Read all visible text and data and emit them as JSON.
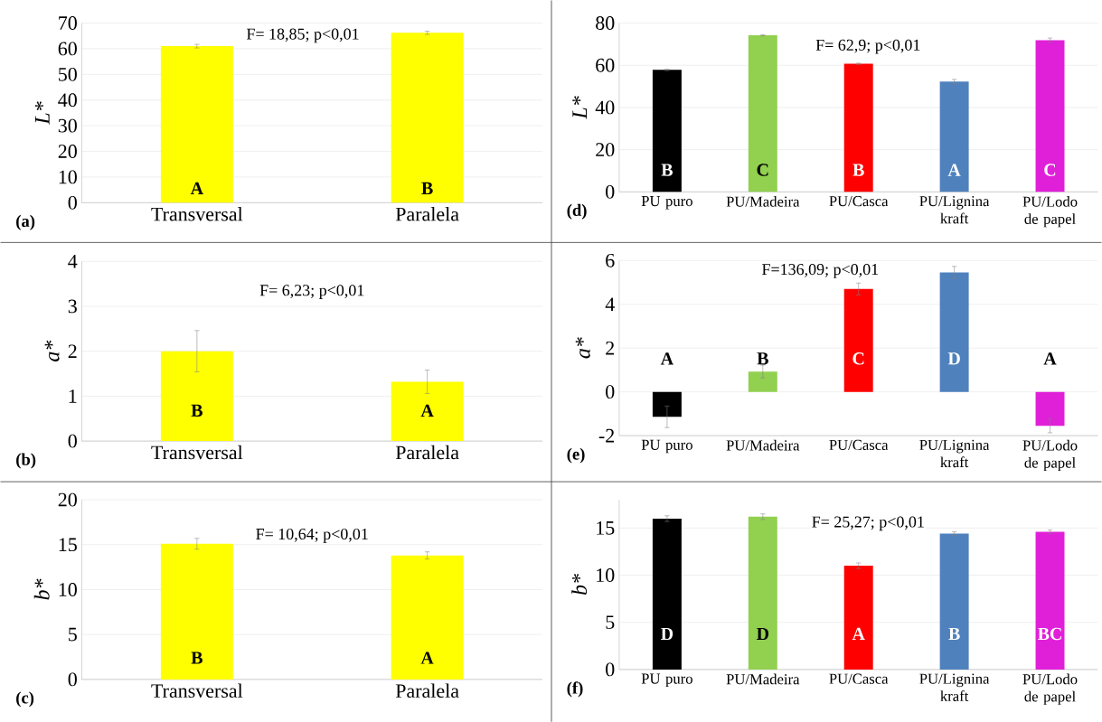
{
  "chart_data": [
    {
      "type": "bar",
      "categories": [
        "Transversal",
        "Paralela"
      ],
      "values": [
        61.0,
        66.2
      ],
      "colors": [
        "#ffff00",
        "#ffff00"
      ],
      "errors": [
        0.7,
        0.6
      ],
      "ylabel": "L*",
      "ylim": [
        0,
        70
      ],
      "yticks": [
        0,
        10,
        20,
        30,
        40,
        50,
        60,
        70
      ],
      "grid": "y",
      "annotations": [
        "F= 18,85; p<0,01",
        "(a)",
        "**A**",
        "**B**"
      ]
    },
    {
      "type": "bar",
      "categories": [
        "PU puro",
        "PU/Madeira",
        "PU/Casca",
        "PU/Lignina kraft",
        "PU/Lodo de papel"
      ],
      "values": [
        57.8,
        74.2,
        60.7,
        52.3,
        71.9
      ],
      "colors": [
        "#000000",
        "#92d050",
        "#ff0000",
        "#4f81bd",
        "#e020d8"
      ],
      "errors": [
        0.3,
        0.3,
        0.3,
        1.0,
        1.0
      ],
      "ylabel": "L*",
      "ylim": [
        0,
        80
      ],
      "yticks": [
        0,
        20,
        40,
        60,
        80
      ],
      "grid": "y",
      "annotations": [
        "F= 62,9; p<0,01",
        "(d)",
        "**B**",
        "**C**",
        "**B**",
        "**A**",
        "**C**"
      ]
    },
    {
      "type": "bar",
      "categories": [
        "Transversal",
        "Paralela"
      ],
      "values": [
        2.0,
        1.32
      ],
      "colors": [
        "#ffff00",
        "#ffff00"
      ],
      "errors": [
        0.46,
        0.26
      ],
      "ylabel": "a*",
      "ylim": [
        0,
        4
      ],
      "yticks": [
        0,
        1,
        2,
        3,
        4
      ],
      "grid": "y",
      "annotations": [
        "F= 6,23; p<0,01",
        "(b)",
        "**B**",
        "**A**"
      ]
    },
    {
      "type": "bar",
      "categories": [
        "PU puro",
        "PU/Madeira",
        "PU/Casca",
        "PU/Lignina kraft",
        "PU/Lodo de papel"
      ],
      "values": [
        -1.14,
        0.93,
        4.7,
        5.46,
        -1.55
      ],
      "colors": [
        "#000000",
        "#92d050",
        "#ff0000",
        "#4f81bd",
        "#e020d8"
      ],
      "errors": [
        0.49,
        0.29,
        0.27,
        0.27,
        0.32
      ],
      "ylabel": "a*",
      "ylim": [
        -2,
        6
      ],
      "yticks": [
        -2,
        0,
        2,
        4,
        6
      ],
      "grid": "y",
      "annotations": [
        "F=136,09; p<0,01",
        "(e)",
        "**A**",
        "**B**",
        "**C**",
        "**D**",
        "**A**"
      ]
    },
    {
      "type": "bar",
      "categories": [
        "Transversal",
        "Paralela"
      ],
      "values": [
        15.1,
        13.8
      ],
      "colors": [
        "#ffff00",
        "#ffff00"
      ],
      "errors": [
        0.6,
        0.4
      ],
      "ylabel": "b*",
      "ylim": [
        0,
        20
      ],
      "yticks": [
        0,
        5,
        10,
        15,
        20
      ],
      "grid": "y",
      "annotations": [
        "F= 10,64; p<0,01",
        "(c)",
        "**B**",
        "**A**"
      ]
    },
    {
      "type": "bar",
      "categories": [
        "PU puro",
        "PU/Madeira",
        "PU/Casca",
        "PU/Lignina kraft",
        "PU/Lodo de papel"
      ],
      "values": [
        16.0,
        16.2,
        11.0,
        14.4,
        14.6
      ],
      "colors": [
        "#000000",
        "#92d050",
        "#ff0000",
        "#4f81bd",
        "#e020d8"
      ],
      "errors": [
        0.3,
        0.3,
        0.3,
        0.2,
        0.2
      ],
      "ylabel": "b*",
      "ylim": [
        0,
        18
      ],
      "yticks": [
        0,
        5,
        10,
        15
      ],
      "grid": "y",
      "annotations": [
        "F= 25,27; p<0,01",
        "(f)",
        "**D**",
        "**D**",
        "**A**",
        "**B**",
        "**BC**"
      ]
    }
  ]
}
